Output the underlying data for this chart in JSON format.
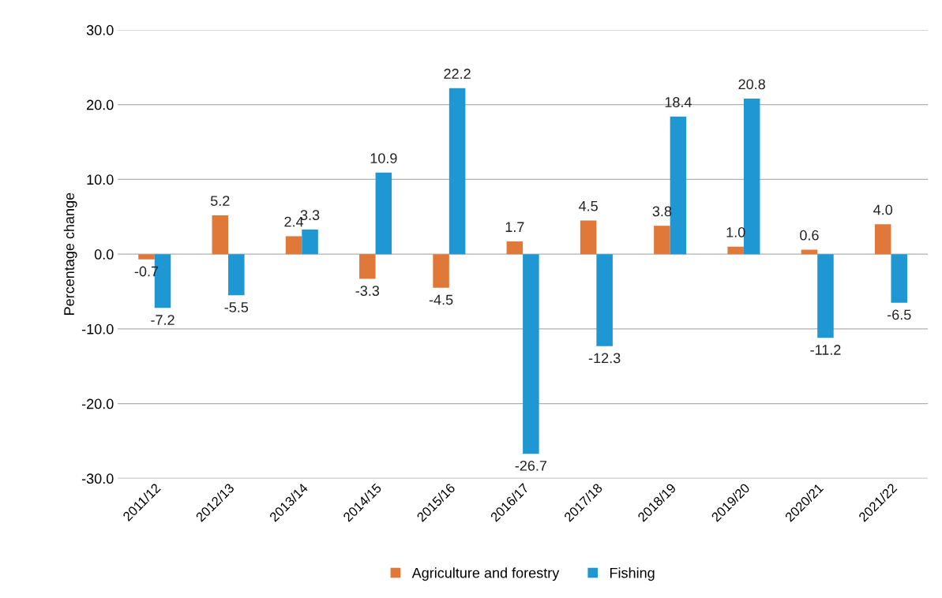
{
  "chart_data": {
    "type": "bar",
    "ylabel": "Percentage change",
    "categories": [
      "2011/12",
      "2012/13",
      "2013/14",
      "2014/15",
      "2015/16",
      "2016/17",
      "2017/18",
      "2018/19",
      "2019/20",
      "2020/21",
      "2021/22"
    ],
    "series": [
      {
        "name": "Agriculture and forestry",
        "color": "#e0783a",
        "values": [
          -0.7,
          5.2,
          2.4,
          -3.3,
          -4.5,
          1.7,
          4.5,
          3.8,
          1.0,
          0.6,
          4.0
        ],
        "value_labels": [
          "-0.7",
          "5.2",
          "2.4",
          "-3.3",
          "-4.5",
          "1.7",
          "4.5",
          "3.8",
          "1.0",
          "0.6",
          "4.0"
        ]
      },
      {
        "name": "Fishing",
        "color": "#1f97d2",
        "values": [
          -7.2,
          -5.5,
          3.3,
          10.9,
          22.2,
          -26.7,
          -12.3,
          18.4,
          20.8,
          -11.2,
          -6.5
        ],
        "value_labels": [
          "-7.2",
          "-5.5",
          "3.3",
          "10.9",
          "22.2",
          "-26.7",
          "-12.3",
          "18.4",
          "20.8",
          "-11.2",
          "-6.5"
        ]
      }
    ],
    "ylim": [
      -30,
      30
    ],
    "yticks": [
      {
        "value": -30,
        "label": "-30.0"
      },
      {
        "value": -20,
        "label": "-20.0"
      },
      {
        "value": -10,
        "label": "-10.0"
      },
      {
        "value": 0,
        "label": "0.0"
      },
      {
        "value": 10,
        "label": "10.0"
      },
      {
        "value": 20,
        "label": "20.0"
      },
      {
        "value": 30,
        "label": "30.0"
      }
    ],
    "grid": "y",
    "legend": "bottom"
  }
}
